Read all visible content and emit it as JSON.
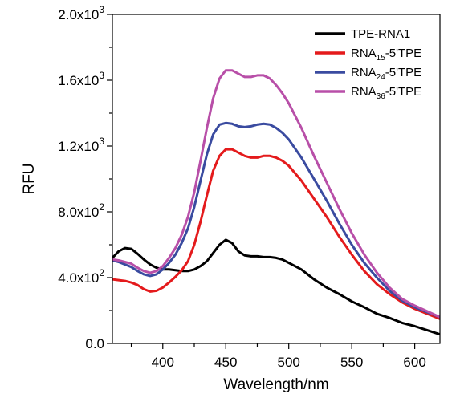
{
  "chart_data": {
    "type": "line",
    "xlabel": "Wavelength/nm",
    "ylabel": "RFU",
    "xlim": [
      360,
      620
    ],
    "ylim": [
      0,
      2000
    ],
    "x_ticks": [
      400,
      450,
      500,
      550,
      600
    ],
    "x_tick_labels": [
      "400",
      "450",
      "500",
      "550",
      "600"
    ],
    "y_ticks": [
      0,
      400,
      800,
      1200,
      1600,
      2000
    ],
    "y_tick_labels": [
      {
        "mantissa": "0.0",
        "exp": ""
      },
      {
        "mantissa": "4.0x10",
        "exp": "2"
      },
      {
        "mantissa": "8.0x10",
        "exp": "2"
      },
      {
        "mantissa": "1.2x10",
        "exp": "3"
      },
      {
        "mantissa": "1.6x10",
        "exp": "3"
      },
      {
        "mantissa": "2.0x10",
        "exp": "3"
      }
    ],
    "grid": false,
    "legend_position": "top-right",
    "series": [
      {
        "name": "TPE-RNA1",
        "label_parts": [
          {
            "text": "TPE-RNA1",
            "sub": false
          }
        ],
        "color": "#000000",
        "x": [
          360,
          365,
          370,
          375,
          380,
          385,
          390,
          395,
          400,
          405,
          410,
          415,
          420,
          425,
          430,
          435,
          440,
          445,
          450,
          455,
          460,
          465,
          470,
          475,
          480,
          485,
          490,
          495,
          500,
          510,
          520,
          530,
          540,
          550,
          560,
          570,
          580,
          590,
          600,
          610,
          620
        ],
        "y": [
          520,
          560,
          580,
          575,
          545,
          510,
          480,
          460,
          450,
          450,
          445,
          440,
          440,
          450,
          470,
          500,
          550,
          600,
          630,
          610,
          560,
          535,
          530,
          530,
          525,
          525,
          520,
          510,
          490,
          450,
          390,
          340,
          300,
          255,
          220,
          180,
          155,
          125,
          105,
          80,
          55
        ]
      },
      {
        "name": "RNA15-5'TPE",
        "label_parts": [
          {
            "text": "RNA",
            "sub": false
          },
          {
            "text": "15",
            "sub": true
          },
          {
            "text": "-5'TPE",
            "sub": false
          }
        ],
        "color": "#e41a1c",
        "x": [
          360,
          365,
          370,
          375,
          380,
          385,
          390,
          395,
          400,
          405,
          410,
          415,
          420,
          425,
          430,
          435,
          440,
          445,
          450,
          455,
          460,
          465,
          470,
          475,
          480,
          485,
          490,
          495,
          500,
          510,
          520,
          530,
          540,
          550,
          560,
          570,
          580,
          590,
          600,
          610,
          620
        ],
        "y": [
          390,
          385,
          380,
          370,
          355,
          330,
          315,
          320,
          340,
          370,
          405,
          445,
          500,
          600,
          740,
          900,
          1050,
          1140,
          1180,
          1180,
          1160,
          1140,
          1130,
          1130,
          1140,
          1140,
          1130,
          1110,
          1080,
          990,
          880,
          770,
          650,
          540,
          440,
          360,
          300,
          250,
          210,
          180,
          150
        ]
      },
      {
        "name": "RNA24-5'TPE",
        "label_parts": [
          {
            "text": "RNA",
            "sub": false
          },
          {
            "text": "24",
            "sub": true
          },
          {
            "text": "-5'TPE",
            "sub": false
          }
        ],
        "color": "#3a4ba0",
        "x": [
          360,
          365,
          370,
          375,
          380,
          385,
          390,
          395,
          400,
          405,
          410,
          415,
          420,
          425,
          430,
          435,
          440,
          445,
          450,
          455,
          460,
          465,
          470,
          475,
          480,
          485,
          490,
          495,
          500,
          510,
          520,
          530,
          540,
          550,
          560,
          570,
          580,
          590,
          600,
          610,
          620
        ],
        "y": [
          505,
          495,
          480,
          465,
          440,
          420,
          410,
          420,
          450,
          490,
          540,
          610,
          700,
          830,
          990,
          1150,
          1270,
          1330,
          1340,
          1335,
          1320,
          1315,
          1320,
          1330,
          1335,
          1330,
          1310,
          1280,
          1240,
          1130,
          1000,
          870,
          730,
          600,
          490,
          400,
          320,
          260,
          220,
          190,
          160
        ]
      },
      {
        "name": "RNA36-5'TPE",
        "label_parts": [
          {
            "text": "RNA",
            "sub": false
          },
          {
            "text": "36",
            "sub": true
          },
          {
            "text": "-5'TPE",
            "sub": false
          }
        ],
        "color": "#b84fa8",
        "x": [
          360,
          365,
          370,
          375,
          380,
          385,
          390,
          395,
          400,
          405,
          410,
          415,
          420,
          425,
          430,
          435,
          440,
          445,
          450,
          455,
          460,
          465,
          470,
          475,
          480,
          485,
          490,
          495,
          500,
          510,
          520,
          530,
          540,
          550,
          560,
          570,
          580,
          590,
          600,
          610,
          620
        ],
        "y": [
          510,
          505,
          495,
          485,
          460,
          440,
          430,
          440,
          470,
          520,
          580,
          660,
          770,
          920,
          1110,
          1310,
          1490,
          1610,
          1660,
          1660,
          1640,
          1620,
          1620,
          1630,
          1630,
          1610,
          1570,
          1520,
          1460,
          1310,
          1140,
          980,
          820,
          670,
          540,
          430,
          340,
          270,
          230,
          195,
          160
        ]
      }
    ]
  }
}
